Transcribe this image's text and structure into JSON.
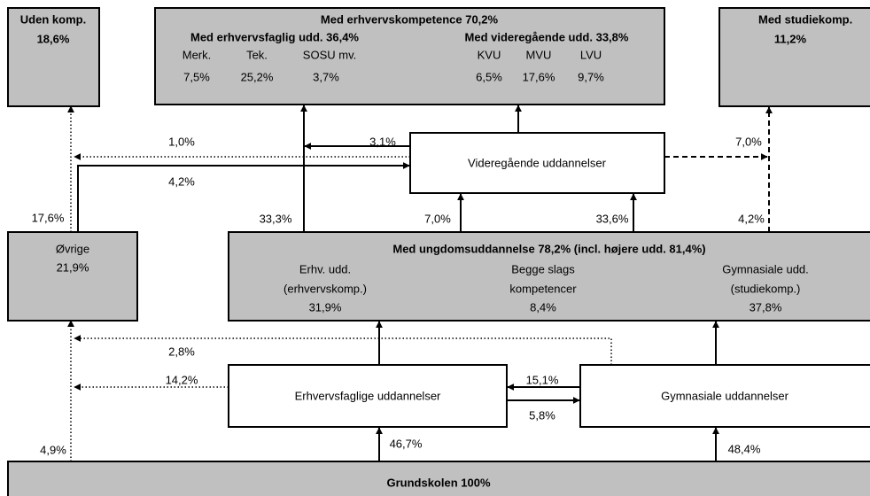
{
  "boxes": {
    "uden": {
      "title": "Uden komp.",
      "value": "18,6%"
    },
    "erhvervskomp": {
      "title": "Med erhvervskompetence 70,2%",
      "erhvervsfaglig": {
        "title": "Med erhvervsfaglig udd. 36,4%",
        "labels": [
          "Merk.",
          "Tek.",
          "SOSU mv."
        ],
        "values": [
          "7,5%",
          "25,2%",
          "3,7%"
        ]
      },
      "videregaaende": {
        "title": "Med videregående udd. 33,8%",
        "labels": [
          "KVU",
          "MVU",
          "LVU"
        ],
        "values": [
          "6,5%",
          "17,6%",
          "9,7%"
        ]
      }
    },
    "studiekomp": {
      "title": "Med studiekomp.",
      "value": "11,2%"
    },
    "videregaaende_udd": {
      "title": "Videregående uddannelser"
    },
    "oevrige": {
      "title": "Øvrige",
      "value": "21,9%"
    },
    "ungdom": {
      "title": "Med ungdomsuddannelse 78,2% (incl. højere udd. 81,4%)",
      "columns": [
        {
          "lines": [
            "Erhv. udd.",
            "(erhvervskomp.)"
          ],
          "value": "31,9%"
        },
        {
          "lines": [
            "Begge slags",
            "kompetencer"
          ],
          "value": "8,4%"
        },
        {
          "lines": [
            "Gymnasiale udd.",
            "(studiekomp.)"
          ],
          "value": "37,8%"
        }
      ]
    },
    "erhvervsfaglige_udd": {
      "title": "Erhvervsfaglige uddannelser"
    },
    "gymnasiale_udd": {
      "title": "Gymnasiale uddannelser"
    },
    "grundskolen": {
      "title": "Grundskolen 100%"
    }
  },
  "flows": {
    "oevrige_to_uden": "17,6%",
    "grund_to_oevrige": "4,9%",
    "vid_to_oevrige": "1,0%",
    "oevrige_to_vid": "4,2%",
    "vid_to_erhvkomp": "3,1%",
    "ungdom_to_erhvkomp": "33,3%",
    "vid_to_studie": "7,0%",
    "ungdom_to_studie": "4,2%",
    "ungdom_to_vid_a": "7,0%",
    "ungdom_to_vid_b": "33,6%",
    "gym_to_oevrige": "2,8%",
    "erhv_to_oevrige": "14,2%",
    "gym_to_erhv": "15,1%",
    "erhv_to_gym": "5,8%",
    "grund_to_erhv": "46,7%",
    "grund_to_gym": "48,4%"
  }
}
